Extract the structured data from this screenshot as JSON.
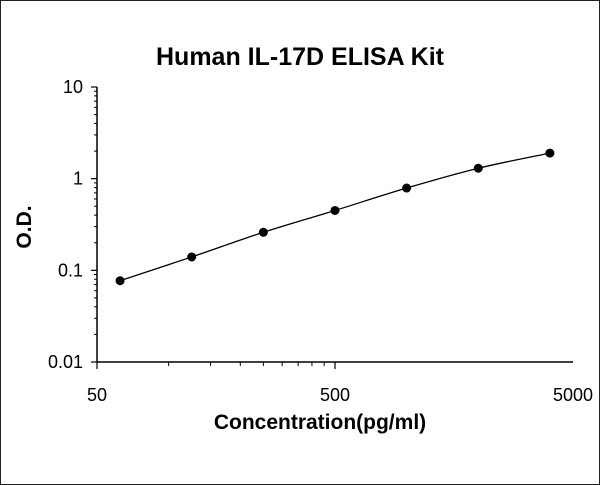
{
  "chart_data": {
    "type": "scatter",
    "title": "Human IL-17D ELISA Kit",
    "xlabel": "Concentration(pg/ml)",
    "ylabel": "O.D.",
    "x_scale": "log",
    "y_scale": "log",
    "xlim": [
      50,
      5000
    ],
    "ylim": [
      0.01,
      10
    ],
    "x_ticks": [
      "50",
      "500",
      "5000"
    ],
    "y_ticks": [
      "10",
      "1",
      "0.1",
      "0.01"
    ],
    "grid": false,
    "legend": "none",
    "series": [
      {
        "x": [
          62.5,
          125,
          250,
          500,
          1000,
          2000,
          4000
        ],
        "y": [
          0.077,
          0.14,
          0.26,
          0.45,
          0.79,
          1.3,
          1.9
        ],
        "marker": "circle",
        "fit_line": true,
        "color": "#000000"
      }
    ]
  }
}
